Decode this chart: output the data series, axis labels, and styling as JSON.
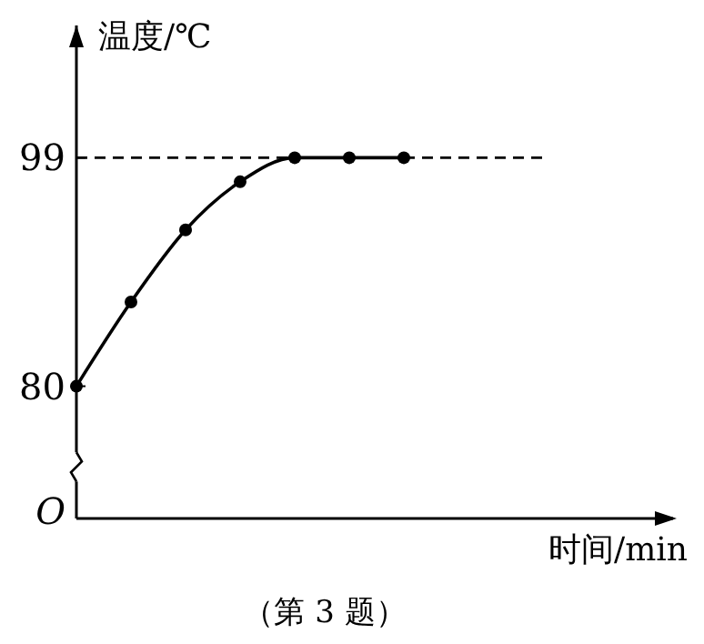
{
  "chart_data": {
    "type": "line",
    "ylabel": "温度/℃",
    "xlabel": "时间/min",
    "annotations": [
      "O",
      "（第 3 题）"
    ],
    "categories": [
      null,
      null,
      null,
      null,
      null,
      null,
      null
    ],
    "series": [
      {
        "color": "#000000",
        "values": [
          80,
          87,
          93,
          97,
          99,
          99,
          99
        ]
      }
    ],
    "ylim": [
      69,
      110
    ],
    "yticks": [
      80,
      99
    ],
    "ref_lines": [
      {
        "axis": "y",
        "value": 99,
        "line_style": "dashed",
        "color": "#000000"
      }
    ],
    "marker": "circle",
    "line_style": "solid",
    "grid": false,
    "tick_labels": "y"
  }
}
